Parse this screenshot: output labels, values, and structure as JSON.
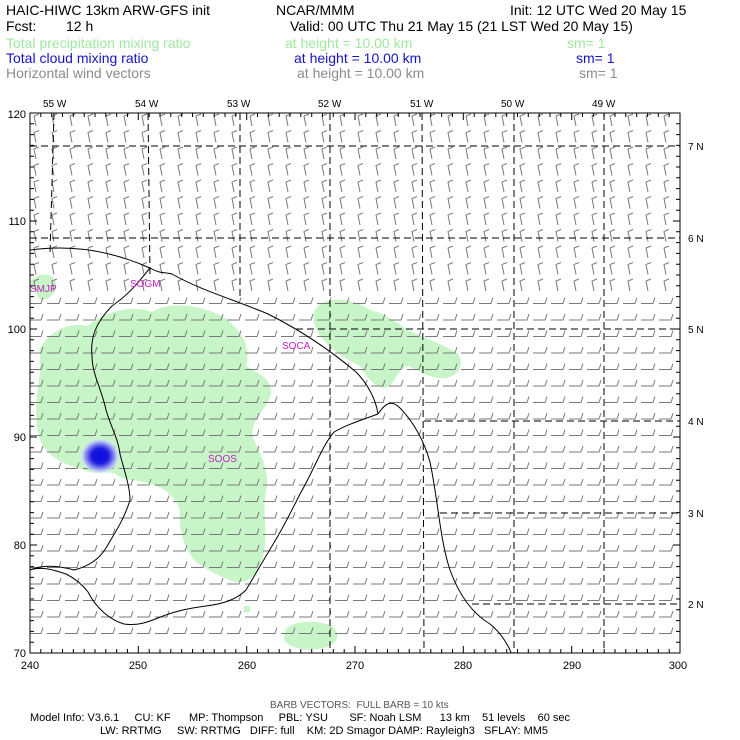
{
  "header": {
    "model_title": "HAIC-HIWC 13km ARW-GFS init",
    "org": "NCAR/MMM",
    "init": "Init: 12 UTC Wed 20 May 15",
    "fcst_label": "Fcst:",
    "fcst_value": "12 h",
    "valid": "Valid: 00 UTC Thu 21 May 15 (21 LST Wed 20 May 15)",
    "fields": [
      {
        "name": "Total precipitation mixing ratio",
        "height": "at height = 10.00 km",
        "sm": "sm= 1",
        "color": "#9ee89e"
      },
      {
        "name": "Total cloud mixing ratio",
        "height": "at height = 10.00 km",
        "sm": "sm= 1",
        "color": "#1515c8"
      },
      {
        "name": "Horizontal wind vectors",
        "height": "at height = 10.00 km",
        "sm": "sm= 1",
        "color": "#8c8c8c"
      }
    ]
  },
  "map": {
    "x_axis": {
      "ticks": [
        "240",
        "250",
        "260",
        "270",
        "280",
        "290",
        "300"
      ]
    },
    "y_axis": {
      "ticks": [
        "70",
        "80",
        "90",
        "100",
        "110",
        "120"
      ]
    },
    "lon_labels": [
      "55 W",
      "54 W",
      "53 W",
      "52 W",
      "51 W",
      "50 W",
      "49 W"
    ],
    "lat_labels": [
      "7 N",
      "6 N",
      "5 N",
      "4 N",
      "3 N",
      "2 N"
    ],
    "places": [
      "SMJP",
      "SOGM",
      "SOCA",
      "SOOS"
    ],
    "colors": {
      "precip": "#c8f5c8",
      "cloud_core": "#1010d8",
      "coast": "#000000",
      "barb": "#7a7a7a",
      "place": "#c21fc2"
    }
  },
  "footer": {
    "barb_note": "BARB VECTORS:  FULL BARB = 10 kts",
    "line1": "Model Info: V3.6.1     CU: KF      MP: Thompson     PBL: YSU       SF: Noah LSM      13 km    51 levels    60 sec",
    "line2": "LW: RRTMG     SW: RRTMG   DIFF: full    KM: 2D Smagor DAMP: Rayleigh3   SFLAY: MM5"
  }
}
